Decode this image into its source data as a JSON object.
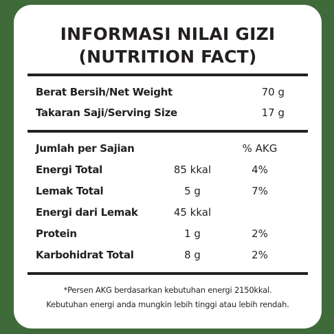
{
  "title": {
    "line1": "INFORMASI NILAI GIZI",
    "line2": "(NUTRITION FACT)"
  },
  "summary": [
    {
      "label": "Berat Bersih/Net Weight",
      "value": "70 g"
    },
    {
      "label": "Takaran Saji/Serving Size",
      "value": "17 g"
    }
  ],
  "table": {
    "header": {
      "label": "Jumlah per Sajian",
      "pct": "% AKG"
    },
    "rows": [
      {
        "label": "Energi Total",
        "amount": "85 kkal",
        "pct": "4%"
      },
      {
        "label": "Lemak Total",
        "amount": "5 g",
        "pct": "7%"
      },
      {
        "label": "Energi dari Lemak",
        "amount": "45 kkal",
        "pct": ""
      },
      {
        "label": "Protein",
        "amount": "1 g",
        "pct": "2%"
      },
      {
        "label": "Karbohidrat Total",
        "amount": "8 g",
        "pct": "2%"
      }
    ]
  },
  "footnote": {
    "line1": "*Persen AKG berdasarkan kebutuhan energi 2150kkal.",
    "line2": "Kebutuhan energi anda mungkin lebih tinggi atau lebih rendah."
  }
}
